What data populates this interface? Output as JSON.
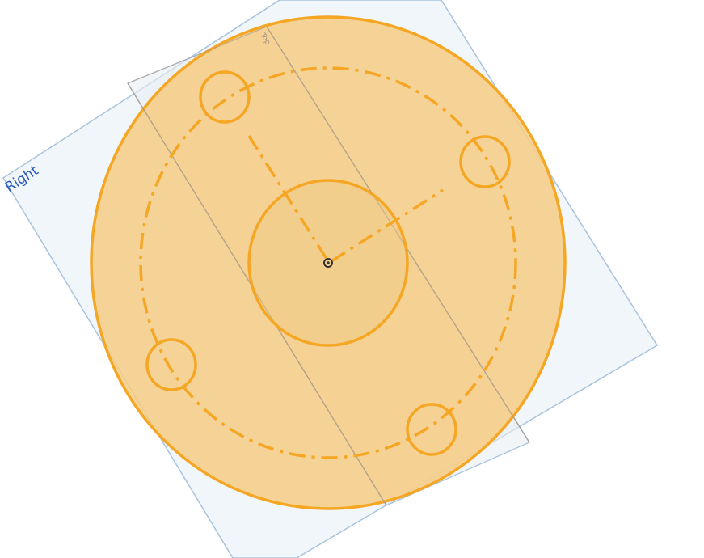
{
  "viewport": {
    "plane_right_label": "Right",
    "plane_top_label": "Top"
  },
  "colors": {
    "background": "#ffffff",
    "plane_fill": "#eef4fa",
    "plane_edge": "#a9c3dd",
    "plane_label": "#2a5bb8",
    "sketch_fill": "#f6cc84",
    "sketch_stroke": "#f5a623",
    "origin_marker": "#333333"
  },
  "icons": {
    "origin": "origin-point-icon"
  }
}
